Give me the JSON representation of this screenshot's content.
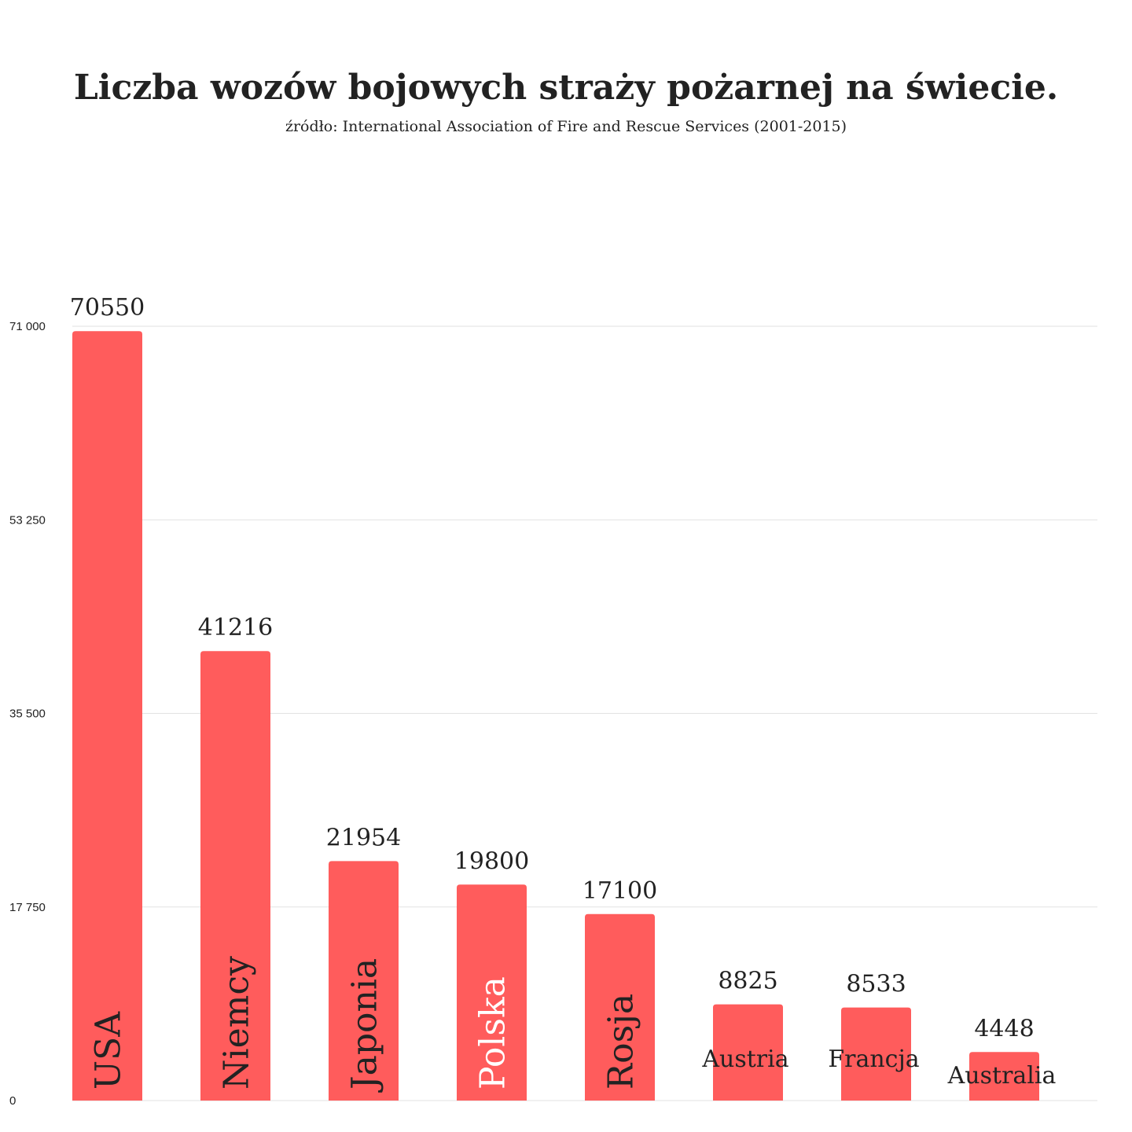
{
  "chart_data": {
    "type": "bar",
    "title": "Liczba wozów bojowych straży pożarnej na świecie.",
    "subtitle": "źródło: International Association of Fire and Rescue Services (2001-2015)",
    "categories": [
      "USA",
      "Niemcy",
      "Japonia",
      "Polska",
      "Rosja",
      "Austria",
      "Francja",
      "Australia"
    ],
    "values": [
      70550,
      41216,
      21954,
      19800,
      17100,
      8825,
      8533,
      4448
    ],
    "value_labels": [
      "70550",
      "41216",
      "21954",
      "19800",
      "17100",
      "8825",
      "8533",
      "4448"
    ],
    "yticks": [
      0,
      17750,
      35500,
      53250,
      71000
    ],
    "ytick_labels": [
      "0",
      "17 750",
      "35 500",
      "53 250",
      "71 000"
    ],
    "ylim": [
      0,
      71000
    ],
    "grid": true,
    "legend": "none",
    "xlabel": "",
    "ylabel": "",
    "colors": {
      "bar": "#ff5c5c",
      "grid": "#e2e2e2",
      "text": "#222222",
      "highlight_label": "#ffffff"
    },
    "highlight_category": "Polska"
  }
}
